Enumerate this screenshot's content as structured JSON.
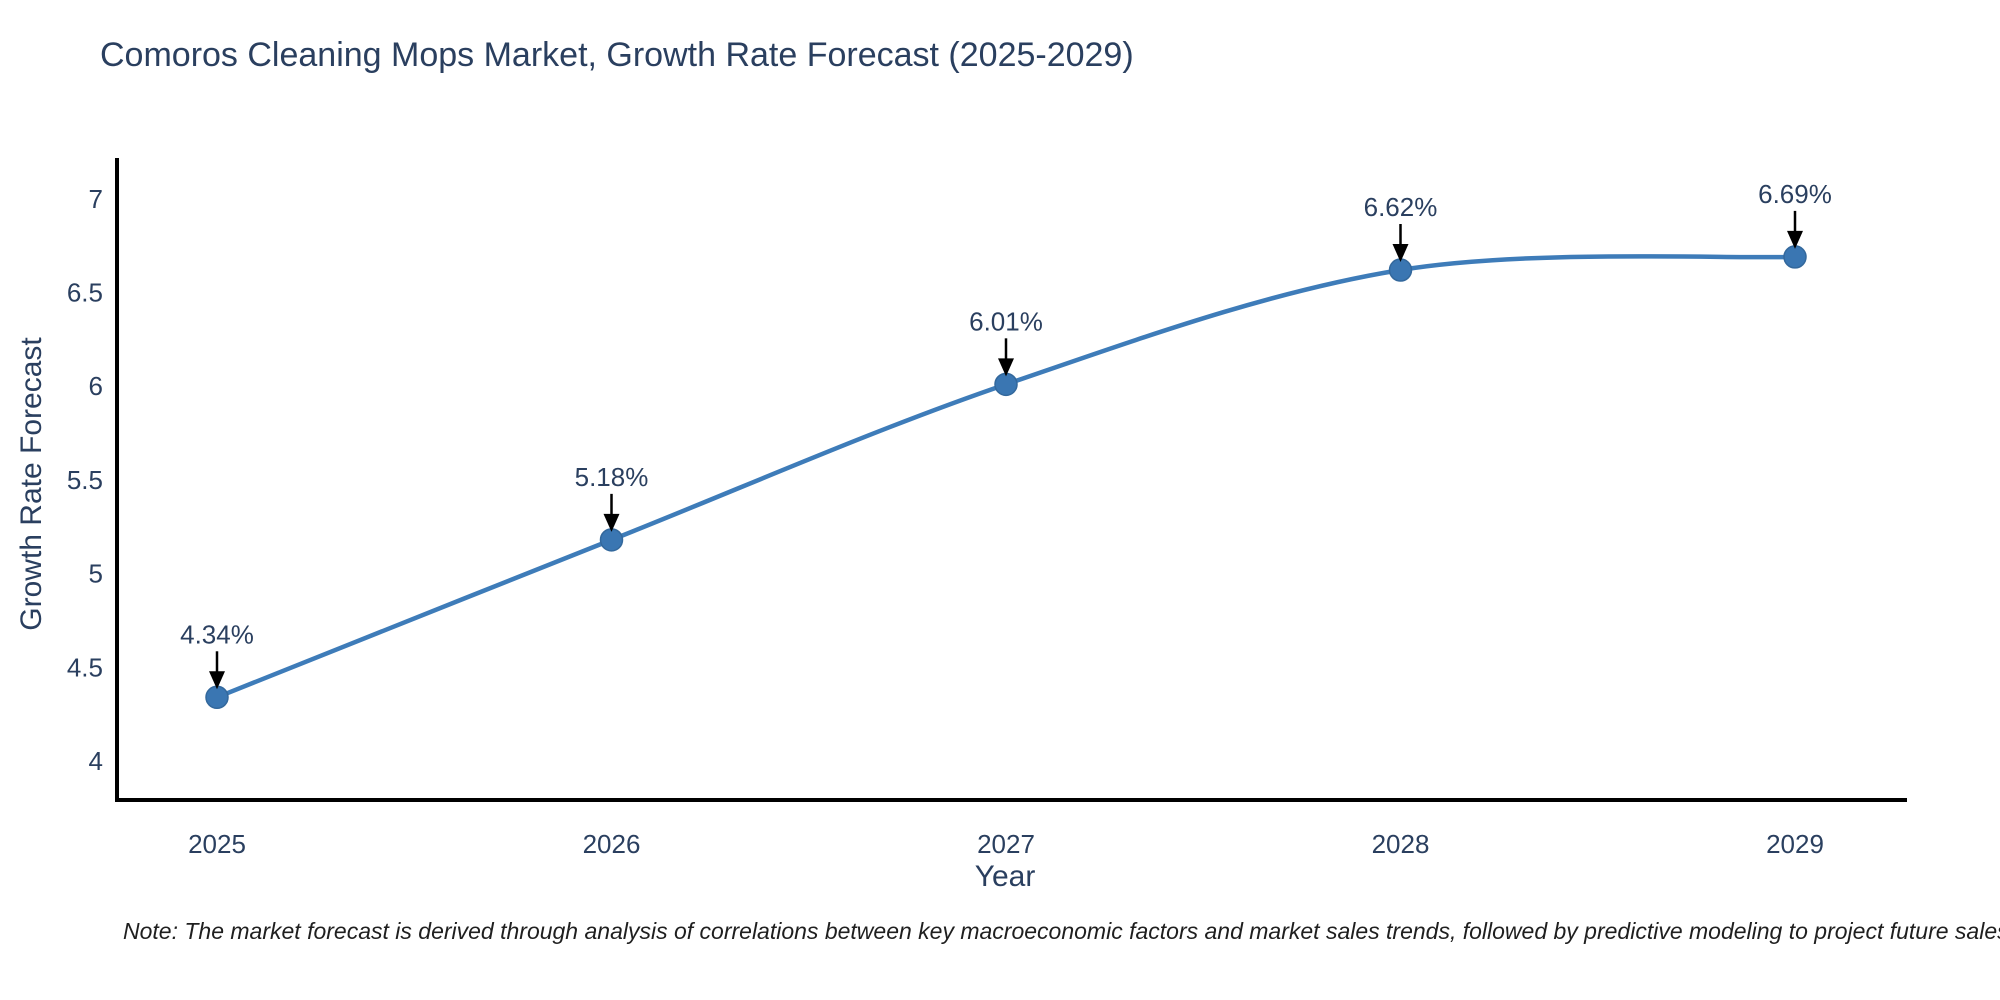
{
  "chart": {
    "title": "Comoros Cleaning Mops Market, Growth Rate Forecast (2025-2029)",
    "xlabel": "Year",
    "ylabel": "Growth Rate Forecast",
    "note": "Note: The market forecast is derived through analysis of correlations between key macroeconomic factors and market sales trends, followed by predictive modeling to project future sales"
  },
  "chart_data": {
    "type": "line",
    "title": "Comoros Cleaning Mops Market, Growth Rate Forecast (2025-2029)",
    "xlabel": "Year",
    "ylabel": "Growth Rate Forecast",
    "x": [
      2025,
      2026,
      2027,
      2028,
      2029
    ],
    "series": [
      {
        "name": "Growth Rate Forecast",
        "values": [
          4.34,
          5.18,
          6.01,
          6.62,
          6.69
        ]
      }
    ],
    "point_labels": [
      "4.34%",
      "5.18%",
      "6.01%",
      "6.62%",
      "6.69%"
    ],
    "xtick_labels": [
      "2025",
      "2026",
      "2027",
      "2028",
      "2029"
    ],
    "yticks": [
      4,
      4.5,
      5,
      5.5,
      6,
      6.5,
      7
    ],
    "ytick_labels": [
      "4",
      "4.5",
      "5",
      "5.5",
      "6",
      "6.5",
      "7"
    ],
    "ylim": [
      3.79,
      7.21
    ],
    "xlim": [
      2024.74,
      2029.28
    ],
    "grid": false,
    "legend_position": "none",
    "line_shape": "spline",
    "line_color": "#3e7cb9",
    "marker_color": "#3a76b2",
    "marker_edge_color": "#33689c",
    "axis_line_color": "#000000",
    "annotation_arrow_color": "#000000",
    "text_color": "#2a3f5f"
  }
}
